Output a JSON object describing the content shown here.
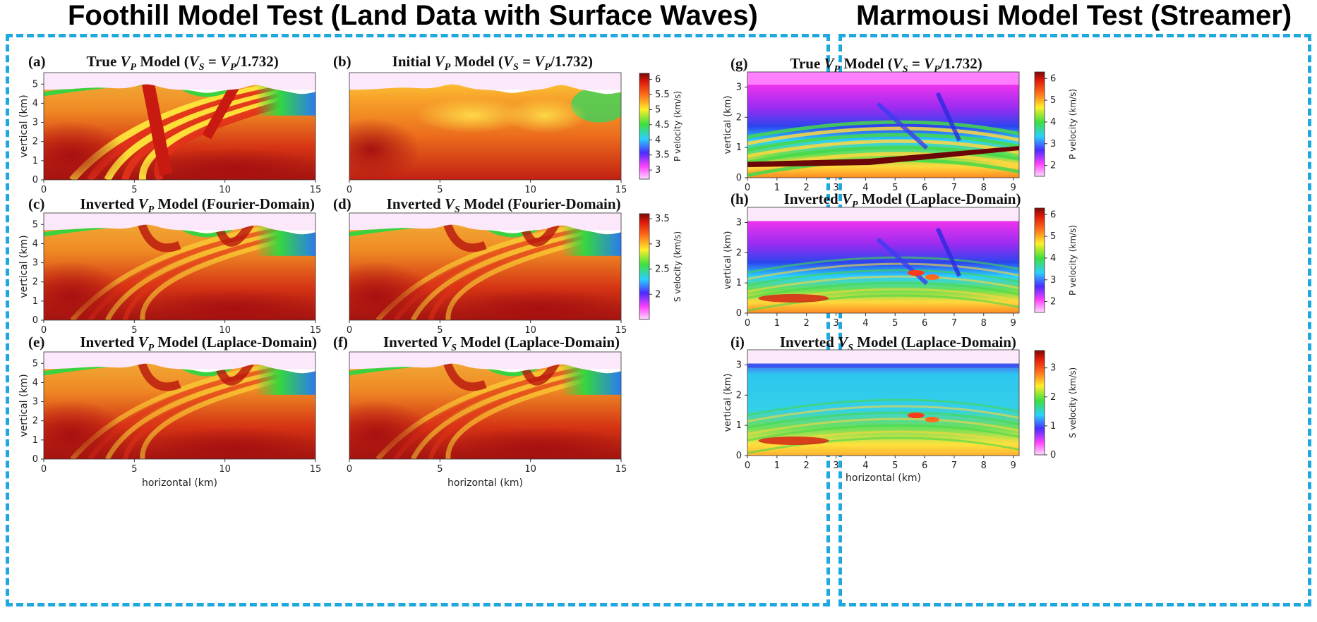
{
  "left_section_title": "Foothill Model Test (Land Data with Surface Waves)",
  "right_section_title": "Marmousi Model Test (Streamer)",
  "colors": {
    "dash_border": "#1fa8e0"
  },
  "left_axes": {
    "x_label": "horizontal (km)",
    "y_label": "vertical (km)",
    "x_ticks": [
      "0",
      "5",
      "10",
      "15"
    ],
    "y_ticks": [
      "0",
      "1",
      "2",
      "3",
      "4",
      "5"
    ]
  },
  "right_axes": {
    "x_label": "horizontal (km)",
    "y_label": "vertical (km)",
    "x_ticks": [
      "0",
      "1",
      "2",
      "3",
      "4",
      "5",
      "6",
      "7",
      "8",
      "9"
    ],
    "y_ticks": [
      "0",
      "1",
      "2",
      "3"
    ]
  },
  "panels": [
    {
      "label": "(a)",
      "title": "True V_P Model (V_S = V_P/1.732)"
    },
    {
      "label": "(b)",
      "title": "Initial V_P Model (V_S = V_P/1.732)"
    },
    {
      "label": "(c)",
      "title": "Inverted V_P Model (Fourier-Domain)"
    },
    {
      "label": "(d)",
      "title": "Inverted V_S Model (Fourier-Domain)"
    },
    {
      "label": "(e)",
      "title": "Inverted V_P Model (Laplace-Domain)"
    },
    {
      "label": "(f)",
      "title": "Inverted V_S Model (Laplace-Domain)"
    },
    {
      "label": "(g)",
      "title": "True V_P Model (V_S = V_P/1.732)"
    },
    {
      "label": "(h)",
      "title": "Inverted V_P Model (Laplace-Domain)"
    },
    {
      "label": "(i)",
      "title": "Inverted V_S Model (Laplace-Domain)"
    }
  ],
  "colorbars": [
    {
      "label": "P velocity (km/s)",
      "ticks": [
        "3",
        "3.5",
        "4",
        "4.5",
        "5",
        "5.5",
        "6"
      ]
    },
    {
      "label": "S velocity (km/s)",
      "ticks": [
        "2",
        "2.5",
        "3",
        "3.5"
      ]
    },
    {
      "label": "P velocity (km/s)",
      "ticks": [
        "2",
        "3",
        "4",
        "5",
        "6"
      ]
    },
    {
      "label": "P velocity (km/s)",
      "ticks": [
        "2",
        "3",
        "4",
        "5",
        "6"
      ]
    },
    {
      "label": "S velocity (km/s)",
      "ticks": [
        "0",
        "1",
        "2",
        "3"
      ]
    }
  ]
}
